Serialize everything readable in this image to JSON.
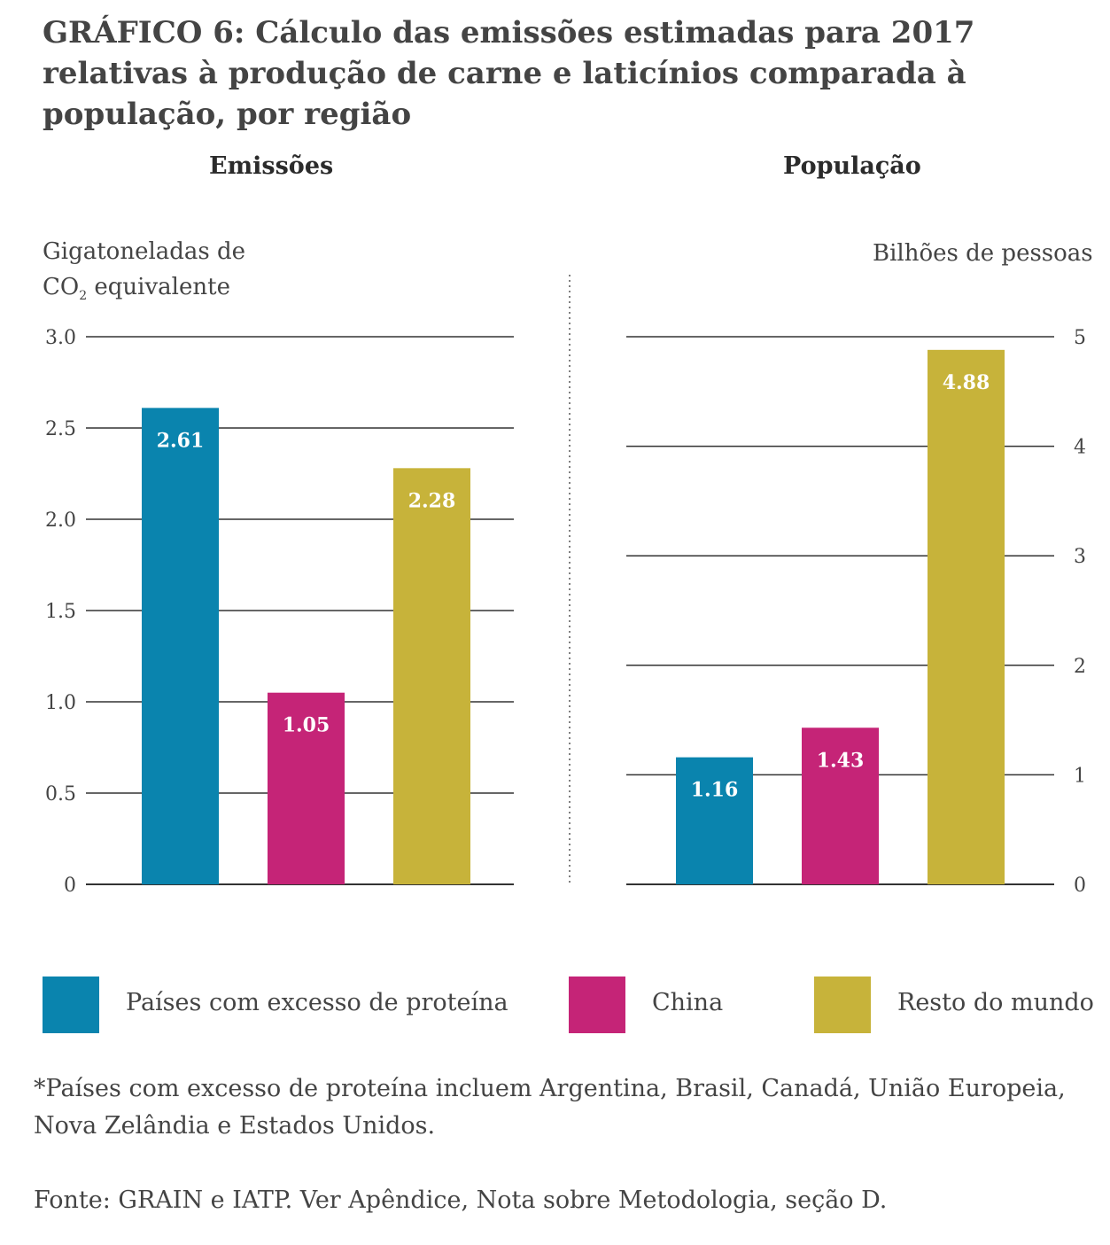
{
  "title": {
    "prefix": "GRÁFICO 6:",
    "text": "Cálculo das emissões estimadas para 2017 relativas à produção de carne e laticínios comparada à população, por região"
  },
  "colors": {
    "Países com excesso de proteína": "#0A84AE",
    "China": "#C52477",
    "Resto do mundo": "#C7B33A"
  },
  "chart_data": [
    {
      "type": "bar",
      "title": "Emissões",
      "ylabel": "Gigatoneladas de CO₂ equivalente",
      "ylabel_line1": "Gigatoneladas de",
      "ylabel_line2_main": "CO",
      "ylabel_line2_sub": "2",
      "ylabel_line2_rest": " equivalente",
      "categories": [
        "Países com excesso de proteína",
        "China",
        "Resto do mundo"
      ],
      "values": [
        2.61,
        1.05,
        2.28
      ],
      "value_labels": [
        "2.61",
        "1.05",
        "2.28"
      ],
      "ylim": [
        0,
        3.0
      ],
      "yticks": [
        "0",
        "0.5",
        "1.0",
        "1.5",
        "2.0",
        "2.5",
        "3.0"
      ],
      "ytick_values": [
        0,
        0.5,
        1.0,
        1.5,
        2.0,
        2.5,
        3.0
      ],
      "grid": true,
      "axis_side": "left"
    },
    {
      "type": "bar",
      "title": "População",
      "ylabel": "Bilhões de pessoas",
      "categories": [
        "Países com excesso de proteína",
        "China",
        "Resto do mundo"
      ],
      "values": [
        1.16,
        1.43,
        4.88
      ],
      "value_labels": [
        "1.16",
        "1.43",
        "4.88"
      ],
      "ylim": [
        0,
        5
      ],
      "yticks": [
        "0",
        "1",
        "2",
        "3",
        "4",
        "5"
      ],
      "ytick_values": [
        0,
        1,
        2,
        3,
        4,
        5
      ],
      "grid": true,
      "axis_side": "right"
    }
  ],
  "legend": [
    {
      "label": "Países com excesso de proteína",
      "color": "#0A84AE"
    },
    {
      "label": "China",
      "color": "#C52477"
    },
    {
      "label": "Resto do mundo",
      "color": "#C7B33A"
    }
  ],
  "footnote": {
    "line1": "*Países com excesso de proteína incluem Argentina, Brasil, Canadá, União Europeia,",
    "line2": "Nova Zelândia e Estados Unidos."
  },
  "source": "Fonte: GRAIN e IATP. Ver Apêndice, Nota sobre Metodologia, seção D."
}
